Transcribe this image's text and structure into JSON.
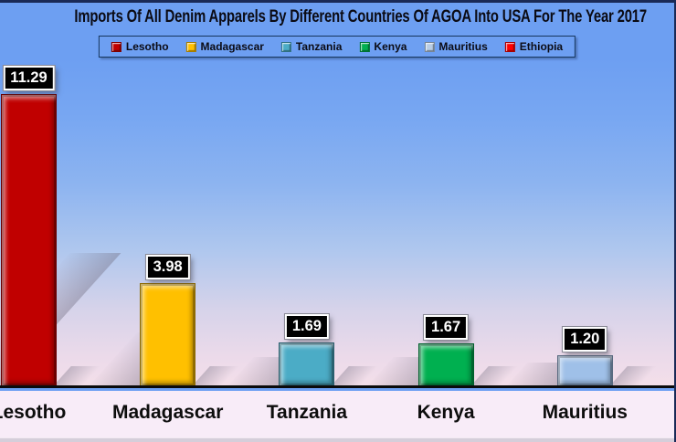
{
  "title": "Imports Of All Denim Apparels By Different Countries Of AGOA Into USA For The Year 2017",
  "legend": {
    "items": [
      {
        "label": "Lesotho",
        "color": "#C00000"
      },
      {
        "label": "Madagascar",
        "color": "#FFC000"
      },
      {
        "label": "Tanzania",
        "color": "#4BACC6"
      },
      {
        "label": "Kenya",
        "color": "#00B050"
      },
      {
        "label": "Mauritius",
        "color": "#B9CDE5"
      },
      {
        "label": "Ethiopia",
        "color": "#FF0000"
      }
    ]
  },
  "chart_data": {
    "type": "bar",
    "title": "Imports Of All Denim Apparels By Different Countries Of AGOA Into USA For The Year 2017",
    "categories": [
      "Lesotho",
      "Madagascar",
      "Tanzania",
      "Kenya",
      "Mauritius"
    ],
    "values": [
      11.29,
      3.98,
      1.69,
      1.67,
      1.2
    ],
    "value_labels": [
      "11.29",
      "3.98",
      "1.69",
      "1.67",
      "1.20"
    ],
    "bar_colors": [
      "#C00000",
      "#FFC000",
      "#4BACC6",
      "#00B050",
      "#9FC0E8"
    ],
    "xlabel": "",
    "ylabel": "",
    "ylim": [
      0,
      12.6
    ],
    "grid": false,
    "legend_position": "top",
    "legend_entries": [
      "Lesotho",
      "Madagascar",
      "Tanzania",
      "Kenya",
      "Mauritius",
      "Ethiopia"
    ]
  },
  "colors": {
    "header_bg": "#6D9FF2",
    "title_text": "#0B0B14",
    "baseline": "#0A0A0A",
    "axis_area_bg": "#F8ECF8",
    "bottom_strip": "#D5CEDA",
    "label_box_bg": "#000000",
    "label_box_text": "#FFFFFF",
    "plot_gradient_top": "#6D9FF2",
    "plot_gradient_bottom": "#F4DFE9"
  }
}
